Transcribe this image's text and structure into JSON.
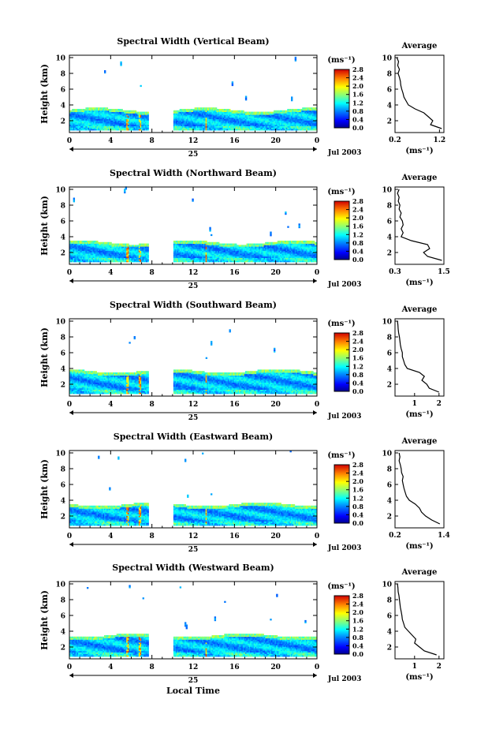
{
  "figure": {
    "date_label": "Jul 2003",
    "day_label": "25",
    "xlabel_bottom": "Local Time",
    "colorbar_unit": "(ms⁻¹)",
    "profile_title": "Average",
    "profile_xlabel": "(ms⁻¹)"
  },
  "chart_data": [
    {
      "type": "heatmap",
      "title": "Spectral Width (Vertical Beam)",
      "ylabel": "Height (km)",
      "x_ticks": [
        "0",
        "4",
        "8",
        "12",
        "16",
        "20",
        "0"
      ],
      "xlim": [
        0,
        24
      ],
      "y_ticks": [
        "2",
        "4",
        "6",
        "8",
        "10"
      ],
      "ylim": [
        0.5,
        10.3
      ],
      "data_gap_hours": [
        7.6,
        10.0
      ],
      "dense_layer_top_km": 3.3,
      "colorbar": {
        "unit": "(ms⁻¹)",
        "min": 0.0,
        "max": 2.8,
        "ticks": [
          "0.0",
          "0.4",
          "0.8",
          "1.2",
          "1.6",
          "2.0",
          "2.4",
          "2.8"
        ]
      },
      "profile": {
        "title": "Average",
        "x_ticks": [
          "0.2",
          "1.2"
        ],
        "xlim": [
          0.2,
          1.3
        ],
        "heights_km": [
          1.0,
          1.5,
          2.0,
          2.5,
          3.0,
          3.5,
          4.0,
          4.5,
          5.0,
          5.5,
          6.0,
          6.5,
          7.0,
          7.5,
          8.0,
          8.5,
          9.0,
          9.5,
          10.0
        ],
        "values": [
          1.25,
          1.0,
          1.05,
          0.95,
          0.85,
          0.65,
          0.5,
          0.45,
          0.4,
          0.38,
          0.35,
          0.33,
          0.32,
          0.3,
          0.27,
          0.3,
          0.26,
          0.28,
          0.24
        ]
      }
    },
    {
      "type": "heatmap",
      "title": "Spectral Width (Northward Beam)",
      "ylabel": "Height (km)",
      "x_ticks": [
        "0",
        "4",
        "8",
        "12",
        "16",
        "20",
        "0"
      ],
      "xlim": [
        0,
        24
      ],
      "y_ticks": [
        "2",
        "4",
        "6",
        "8",
        "10"
      ],
      "ylim": [
        0.5,
        10.3
      ],
      "data_gap_hours": [
        7.6,
        10.0
      ],
      "dense_layer_top_km": 3.2,
      "colorbar": {
        "unit": "(ms⁻¹)",
        "min": 0.0,
        "max": 2.8,
        "ticks": [
          "0.0",
          "0.4",
          "0.8",
          "1.2",
          "1.6",
          "2.0",
          "2.4",
          "2.8"
        ]
      },
      "profile": {
        "title": "Average",
        "x_ticks": [
          "0.3",
          "1.5"
        ],
        "xlim": [
          0.3,
          1.5
        ],
        "heights_km": [
          1.0,
          1.5,
          2.0,
          2.5,
          3.0,
          3.5,
          4.0,
          4.5,
          5.0,
          5.5,
          6.0,
          6.5,
          7.0,
          7.5,
          8.0,
          8.5,
          9.0,
          9.5,
          10.0
        ],
        "values": [
          1.45,
          1.1,
          1.0,
          1.15,
          1.1,
          0.7,
          0.45,
          0.5,
          0.45,
          0.5,
          0.48,
          0.42,
          0.45,
          0.4,
          0.42,
          0.38,
          0.4,
          0.36,
          0.4
        ]
      }
    },
    {
      "type": "heatmap",
      "title": "Spectral Width (Southward Beam)",
      "ylabel": "Height (km)",
      "x_ticks": [
        "0",
        "4",
        "8",
        "12",
        "16",
        "20",
        "0"
      ],
      "xlim": [
        0,
        24
      ],
      "y_ticks": [
        "2",
        "4",
        "6",
        "8",
        "10"
      ],
      "ylim": [
        0.5,
        10.3
      ],
      "data_gap_hours": [
        7.6,
        10.0
      ],
      "dense_layer_top_km": 3.6,
      "colorbar": {
        "unit": "(ms⁻¹)",
        "min": 0.0,
        "max": 2.8,
        "ticks": [
          "0.0",
          "0.4",
          "0.8",
          "1.2",
          "1.6",
          "2.0",
          "2.4",
          "2.8"
        ]
      },
      "profile": {
        "title": "Average",
        "x_ticks": [
          "1",
          "2"
        ],
        "xlim": [
          0.2,
          2.2
        ],
        "heights_km": [
          1.0,
          1.5,
          2.0,
          2.5,
          3.0,
          3.5,
          4.0,
          4.5,
          5.0,
          5.5,
          6.0,
          6.5,
          7.0,
          7.5,
          8.0,
          8.5,
          9.0,
          9.5,
          10.0
        ],
        "values": [
          2.0,
          1.6,
          1.5,
          1.3,
          1.4,
          1.2,
          0.7,
          0.6,
          0.55,
          0.5,
          0.5,
          0.45,
          0.42,
          0.4,
          0.38,
          0.35,
          0.33,
          0.32,
          0.3
        ]
      }
    },
    {
      "type": "heatmap",
      "title": "Spectral Width (Eastward Beam)",
      "ylabel": "Height (km)",
      "x_ticks": [
        "0",
        "4",
        "8",
        "12",
        "16",
        "20",
        "0"
      ],
      "xlim": [
        0,
        24
      ],
      "y_ticks": [
        "2",
        "4",
        "6",
        "8",
        "10"
      ],
      "ylim": [
        0.5,
        10.3
      ],
      "data_gap_hours": [
        7.6,
        10.0
      ],
      "dense_layer_top_km": 3.4,
      "colorbar": {
        "unit": "(ms⁻¹)",
        "min": 0.0,
        "max": 2.8,
        "ticks": [
          "0.0",
          "0.4",
          "0.8",
          "1.2",
          "1.6",
          "2.0",
          "2.4",
          "2.8"
        ]
      },
      "profile": {
        "title": "Average",
        "x_ticks": [
          "0.2",
          "1.4"
        ],
        "xlim": [
          0.2,
          1.4
        ],
        "heights_km": [
          1.0,
          1.5,
          2.0,
          2.5,
          3.0,
          3.5,
          4.0,
          4.5,
          5.0,
          5.5,
          6.0,
          6.5,
          7.0,
          7.5,
          8.0,
          8.5,
          9.0,
          9.5,
          10.0
        ],
        "values": [
          1.3,
          1.1,
          0.95,
          0.85,
          0.8,
          0.7,
          0.55,
          0.48,
          0.45,
          0.42,
          0.4,
          0.38,
          0.4,
          0.36,
          0.35,
          0.33,
          0.3,
          0.32,
          0.3
        ]
      }
    },
    {
      "type": "heatmap",
      "title": "Spectral Width (Westward Beam)",
      "ylabel": "Height (km)",
      "x_ticks": [
        "0",
        "4",
        "8",
        "12",
        "16",
        "20",
        "0"
      ],
      "xlim": [
        0,
        24
      ],
      "y_ticks": [
        "2",
        "4",
        "6",
        "8",
        "10"
      ],
      "ylim": [
        0.5,
        10.3
      ],
      "data_gap_hours": [
        7.6,
        10.0
      ],
      "dense_layer_top_km": 3.4,
      "colorbar": {
        "unit": "(ms⁻¹)",
        "min": 0.0,
        "max": 2.8,
        "ticks": [
          "0.0",
          "0.4",
          "0.8",
          "1.2",
          "1.6",
          "2.0",
          "2.4",
          "2.8"
        ]
      },
      "profile": {
        "title": "Average",
        "x_ticks": [
          "1",
          "2"
        ],
        "xlim": [
          0.2,
          2.2
        ],
        "heights_km": [
          1.0,
          1.5,
          2.0,
          2.5,
          3.0,
          3.5,
          4.0,
          4.5,
          5.0,
          5.5,
          6.0,
          6.5,
          7.0,
          7.5,
          8.0,
          8.5,
          9.0,
          9.5,
          10.0
        ],
        "values": [
          1.9,
          1.4,
          1.2,
          1.0,
          1.05,
          0.9,
          0.75,
          0.6,
          0.55,
          0.5,
          0.48,
          0.45,
          0.42,
          0.4,
          0.38,
          0.36,
          0.33,
          0.32,
          0.3
        ]
      }
    }
  ]
}
